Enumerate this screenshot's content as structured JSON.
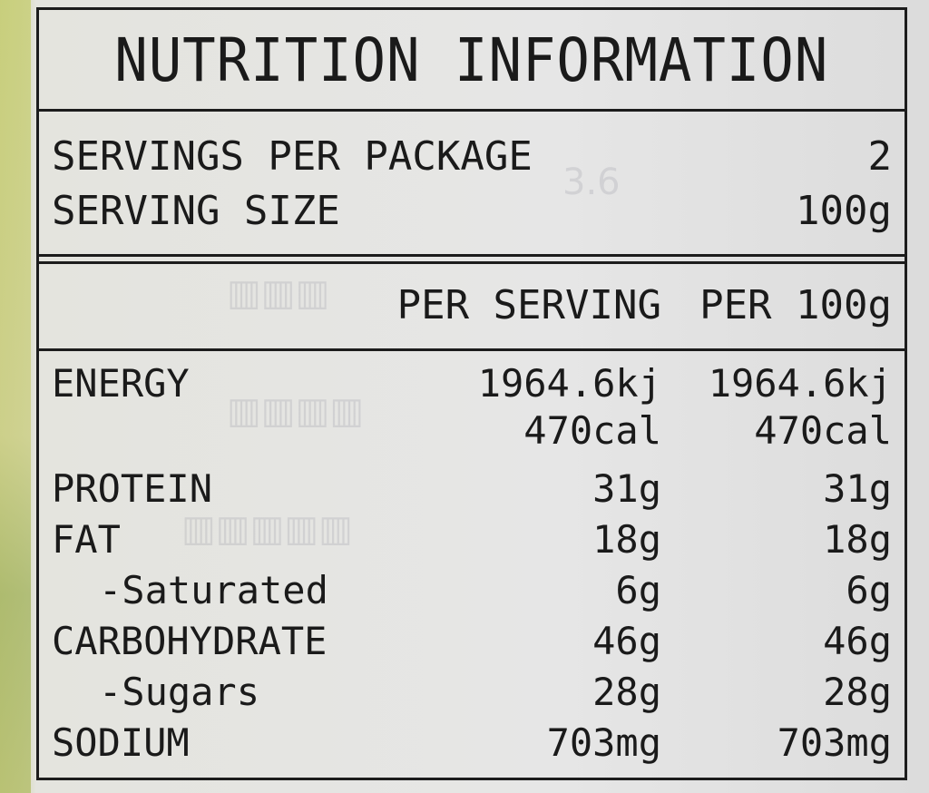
{
  "label": {
    "title": "NUTRITION INFORMATION",
    "servings_per_package": {
      "label": "SERVINGS PER PACKAGE",
      "value": "2"
    },
    "serving_size": {
      "label": "SERVING SIZE",
      "value": "100g"
    },
    "columns": {
      "per_serving": "PER SERVING",
      "per_100g": "PER 100g"
    },
    "nutrients": [
      {
        "name": "ENERGY",
        "per_serving": "1964.6kj",
        "per_100g": "1964.6kj"
      },
      {
        "name": "",
        "per_serving": "470cal",
        "per_100g": "470cal"
      },
      {
        "name": "PROTEIN",
        "per_serving": "31g",
        "per_100g": "31g"
      },
      {
        "name": "FAT",
        "per_serving": "18g",
        "per_100g": "18g"
      },
      {
        "name": "-Saturated",
        "per_serving": "6g",
        "per_100g": "6g"
      },
      {
        "name": "CARBOHYDRATE",
        "per_serving": "46g",
        "per_100g": "46g"
      },
      {
        "name": "-Sugars",
        "per_serving": "28g",
        "per_100g": "28g"
      },
      {
        "name": "SODIUM",
        "per_serving": "703mg",
        "per_100g": "703mg"
      }
    ]
  },
  "colors": {
    "ink": "#1a1a1a",
    "paper": "#e6e6e6",
    "edge_green": "#c8cf7a"
  }
}
